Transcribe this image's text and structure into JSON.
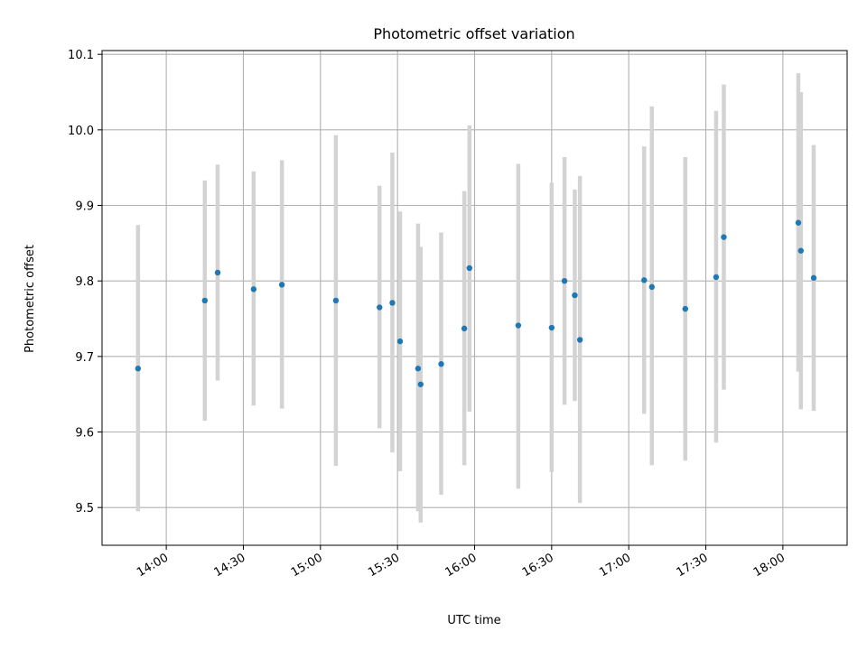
{
  "chart_data": {
    "type": "scatter",
    "title": "Photometric offset variation",
    "xlabel": "UTC time",
    "ylabel": "Photometric offset",
    "grid": true,
    "xlim": [
      "13:35",
      "18:25"
    ],
    "ylim": [
      9.45,
      10.105
    ],
    "x_ticks": [
      "14:00",
      "14:30",
      "15:00",
      "15:30",
      "16:00",
      "16:30",
      "17:00",
      "17:30",
      "18:00"
    ],
    "y_ticks": [
      "9.5",
      "9.6",
      "9.7",
      "9.8",
      "9.9",
      "10.0",
      "10.1"
    ],
    "marker_color": "#1f77b4",
    "errorbar_color": "#d3d3d3",
    "series": [
      {
        "x": [
          "13:49",
          "14:15",
          "14:20",
          "14:34",
          "14:45",
          "15:06",
          "15:23",
          "15:28",
          "15:31",
          "15:38",
          "15:39",
          "15:47",
          "15:56",
          "15:58",
          "16:17",
          "16:30",
          "16:35",
          "16:39",
          "16:41",
          "17:06",
          "17:09",
          "17:22",
          "17:34",
          "17:37",
          "18:06",
          "18:07",
          "18:12"
        ],
        "y": [
          9.684,
          9.774,
          9.811,
          9.789,
          9.795,
          9.774,
          9.765,
          9.771,
          9.72,
          9.684,
          9.663,
          9.69,
          9.737,
          9.817,
          9.741,
          9.738,
          9.8,
          9.781,
          9.722,
          9.801,
          9.792,
          9.763,
          9.805,
          9.858,
          9.877,
          9.84,
          9.804
        ],
        "yerr_low": [
          9.495,
          9.615,
          9.668,
          9.635,
          9.631,
          9.555,
          9.605,
          9.573,
          9.548,
          9.495,
          9.48,
          9.517,
          9.556,
          9.627,
          9.525,
          9.547,
          9.636,
          9.641,
          9.506,
          9.624,
          9.556,
          9.562,
          9.586,
          9.656,
          9.68,
          9.63,
          9.628
        ],
        "yerr_high": [
          9.874,
          9.933,
          9.954,
          9.945,
          9.96,
          9.993,
          9.926,
          9.97,
          9.892,
          9.876,
          9.845,
          9.864,
          9.919,
          10.006,
          9.955,
          9.93,
          9.964,
          9.921,
          9.939,
          9.978,
          10.031,
          9.964,
          10.025,
          10.06,
          10.075,
          10.05,
          9.98
        ]
      }
    ]
  }
}
